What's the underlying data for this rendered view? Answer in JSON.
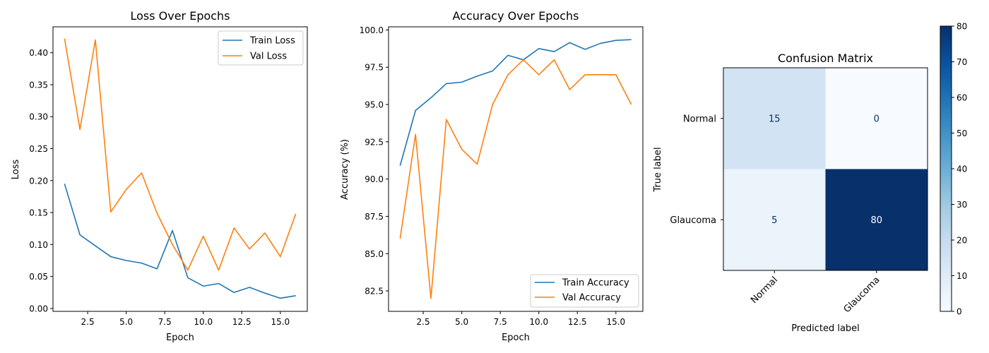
{
  "chart_data": [
    {
      "type": "line",
      "title": "Loss Over Epochs",
      "xlabel": "Epoch",
      "ylabel": "Loss",
      "xlim": [
        0.25,
        16.75
      ],
      "ylim": [
        -0.0045,
        0.4405
      ],
      "x_ticks": [
        2.5,
        5.0,
        7.5,
        10.0,
        12.5,
        15.0
      ],
      "x_tick_labels": [
        "2.5",
        "5.0",
        "7.5",
        "10.0",
        "12.5",
        "15.0"
      ],
      "y_ticks": [
        0.0,
        0.05,
        0.1,
        0.15,
        0.2,
        0.25,
        0.3,
        0.35,
        0.4
      ],
      "y_tick_labels": [
        "0.00",
        "0.05",
        "0.10",
        "0.15",
        "0.20",
        "0.25",
        "0.30",
        "0.35",
        "0.40"
      ],
      "legend_position": "top-right",
      "x": [
        1,
        2,
        3,
        4,
        5,
        6,
        7,
        8,
        9,
        10,
        11,
        12,
        13,
        14,
        15,
        16
      ],
      "series": [
        {
          "name": "Train Loss",
          "color": "#1f77b4",
          "values": [
            0.195,
            0.115,
            0.098,
            0.081,
            0.075,
            0.071,
            0.062,
            0.122,
            0.048,
            0.035,
            0.039,
            0.025,
            0.033,
            0.024,
            0.016,
            0.02
          ]
        },
        {
          "name": "Val Loss",
          "color": "#ff7f0e",
          "values": [
            0.422,
            0.28,
            0.42,
            0.151,
            0.186,
            0.212,
            0.149,
            0.1,
            0.06,
            0.113,
            0.06,
            0.126,
            0.093,
            0.118,
            0.081,
            0.148
          ]
        }
      ]
    },
    {
      "type": "line",
      "title": "Accuracy Over Epochs",
      "xlabel": "Epoch",
      "ylabel": "Accuracy (%)",
      "xlim": [
        0.25,
        16.75
      ],
      "ylim": [
        81.13,
        100.21
      ],
      "x_ticks": [
        2.5,
        5.0,
        7.5,
        10.0,
        12.5,
        15.0
      ],
      "x_tick_labels": [
        "2.5",
        "5.0",
        "7.5",
        "10.0",
        "12.5",
        "15.0"
      ],
      "y_ticks": [
        82.5,
        85.0,
        87.5,
        90.0,
        92.5,
        95.0,
        97.5,
        100.0
      ],
      "y_tick_labels": [
        "82.5",
        "85.0",
        "87.5",
        "90.0",
        "92.5",
        "95.0",
        "97.5",
        "100.0"
      ],
      "legend_position": "bottom-right",
      "x": [
        1,
        2,
        3,
        4,
        5,
        6,
        7,
        8,
        9,
        10,
        11,
        12,
        13,
        14,
        15,
        16
      ],
      "series": [
        {
          "name": "Train Accuracy",
          "color": "#1f77b4",
          "values": [
            90.9,
            94.6,
            95.45,
            96.4,
            96.5,
            96.9,
            97.25,
            98.3,
            98.0,
            98.75,
            98.55,
            99.15,
            98.7,
            99.1,
            99.3,
            99.35
          ]
        },
        {
          "name": "Val Accuracy",
          "color": "#ff7f0e",
          "values": [
            86.0,
            93.0,
            82.0,
            94.0,
            92.0,
            91.0,
            95.0,
            97.0,
            98.0,
            97.0,
            98.0,
            96.0,
            97.0,
            97.0,
            97.0,
            95.0
          ]
        }
      ]
    },
    {
      "type": "heatmap",
      "title": "Confusion Matrix",
      "xlabel": "Predicted label",
      "ylabel": "True label",
      "x_labels": [
        "Normal",
        "Glaucoma"
      ],
      "y_labels": [
        "Normal",
        "Glaucoma"
      ],
      "values": [
        [
          15,
          0
        ],
        [
          5,
          80
        ]
      ],
      "colormap": "Blues",
      "colorbar_range": [
        0,
        80
      ],
      "colorbar_ticks": [
        0,
        10,
        20,
        30,
        40,
        50,
        60,
        70,
        80
      ],
      "colorbar_tick_labels": [
        "0",
        "10",
        "20",
        "30",
        "40",
        "50",
        "60",
        "70",
        "80"
      ]
    }
  ]
}
